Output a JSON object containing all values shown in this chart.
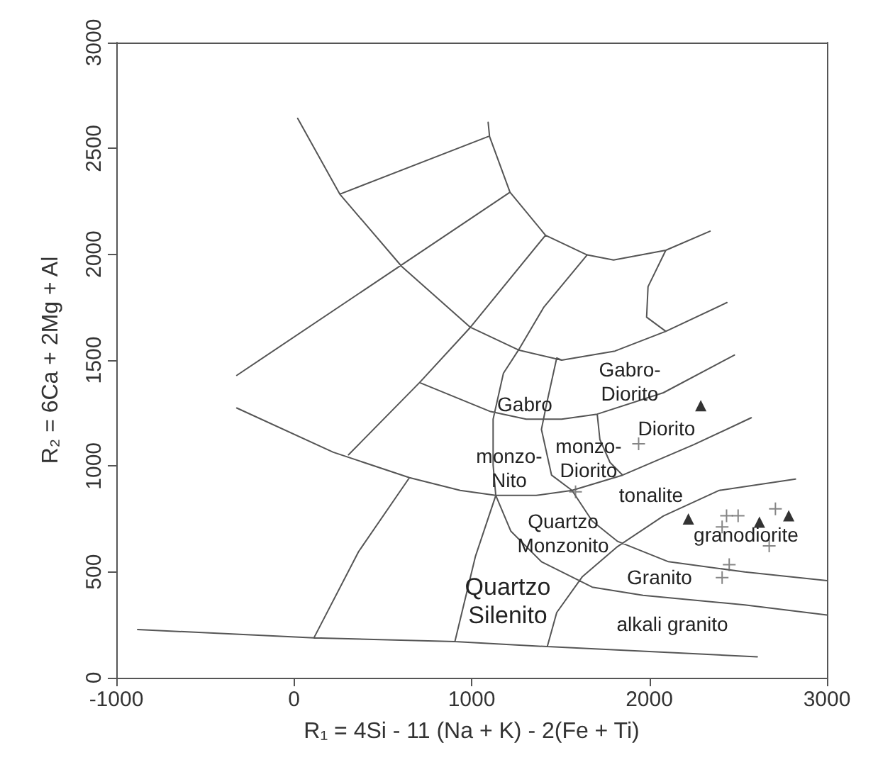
{
  "chart_data": {
    "type": "scatter",
    "xlabel": "R₁ = 4Si - 11 (Na + K) - 2(Fe + Ti)",
    "ylabel": "R₂ = 6Ca + 2Mg + Al",
    "xlim": [
      -1000,
      3000
    ],
    "xticks": [
      -1000,
      0,
      1000,
      2000,
      3000
    ],
    "ylim": [
      0,
      3000
    ],
    "yticks": [
      0,
      500,
      1000,
      1500,
      2000,
      2500,
      3000
    ],
    "series": [
      {
        "type": "line",
        "color": "#555555",
        "marker": "none",
        "x": [
          21,
          258,
          607,
          993,
          1264,
          1507,
          1807,
          2093,
          2437,
          null,
          258,
          1093,
          null,
          1093,
          1101,
          1216,
          1416,
          1650,
          1799,
          2093,
          2342,
          null,
          2093,
          1993,
          1985,
          2093,
          null,
          1216,
          -322,
          null,
          1416,
          993,
          707,
          307,
          null,
          650,
          364,
          112,
          null,
          -322,
          221,
          650,
          936,
          1136,
          1364,
          1565,
          1850,
          2251,
          2574,
          null,
          707,
          1107,
          1307,
          1507,
          1707,
          2079,
          2479,
          null,
          1507,
          1479,
          1422,
          1393,
          1450,
          1565,
          1679,
          1822,
          2108,
          2537,
          3000,
          null,
          1136,
          1221,
          1393,
          1679,
          1965,
          2537,
          3000,
          null,
          1650,
          1407,
          1264,
          1179,
          1121,
          1121,
          1136,
          null,
          1707,
          1722,
          1779,
          1850,
          null,
          1136,
          1021,
          907,
          null,
          2823,
          2394,
          2079,
          1822,
          1622,
          1479,
          1427,
          null,
          -880,
          112,
          907,
          1427,
          2608
        ],
        "values": [
          2642,
          2284,
          1942,
          1655,
          1548,
          1500,
          1543,
          1636,
          1772,
          null,
          2284,
          2556,
          null,
          2623,
          2556,
          2293,
          2090,
          1997,
          1973,
          2019,
          2109,
          null,
          2019,
          1847,
          1703,
          1636,
          null,
          2293,
          1428,
          null,
          2090,
          1655,
          1394,
          1053,
          null,
          945,
          596,
          188,
          null,
          1274,
          1065,
          945,
          885,
          861,
          861,
          885,
          957,
          1101,
          1228,
          null,
          1394,
          1257,
          1221,
          1221,
          1245,
          1346,
          1524,
          null,
          1500,
          1510,
          1293,
          1173,
          957,
          885,
          740,
          644,
          548,
          500,
          459,
          null,
          861,
          692,
          548,
          428,
          389,
          344,
          296,
          null,
          1997,
          1751,
          1548,
          1438,
          1221,
          1005,
          861,
          null,
          1245,
          1125,
          1017,
          957,
          null,
          861,
          572,
          175,
          null,
          938,
          885,
          764,
          620,
          476,
          308,
          151,
          null,
          228,
          188,
          171,
          147,
          99
        ]
      },
      {
        "color": "#000000",
        "marker": "triangle",
        "x": [
          2290,
          2220,
          2620,
          2785
        ],
        "values": [
          1285,
          750,
          735,
          765
        ]
      },
      {
        "color": "#666666",
        "marker": "cross",
        "x": [
          1940,
          1585,
          2435,
          2500,
          2710,
          2675,
          2410,
          2450,
          2410
        ],
        "values": [
          1105,
          878,
          765,
          765,
          798,
          623,
          712,
          534,
          473
        ]
      }
    ],
    "annotations": [
      "Gabro-\nDiorito",
      "Gabro",
      "Diorito",
      "monzo-\nNito",
      "monzo-\nDiorito",
      "tonalite",
      "Quartzo\nMonzonito",
      "granodiorite",
      "Quartzo\nSilenito",
      "Granito",
      "alkali granito"
    ]
  }
}
